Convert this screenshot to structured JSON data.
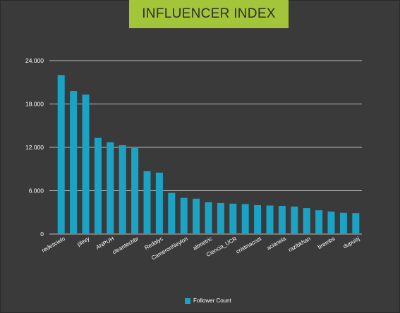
{
  "header": {
    "title": "INFLUENCER INDEX"
  },
  "legend": {
    "label": "Follower Count"
  },
  "colors": {
    "bar": "#1ba3c6",
    "banner": "#a3c539",
    "background": "#3a3a3a",
    "grid": "#e6e6e6"
  },
  "chart_data": {
    "type": "bar",
    "title": "INFLUENCER INDEX",
    "xlabel": "",
    "ylabel": "",
    "ylim": [
      0,
      24000
    ],
    "yticks": [
      0,
      6000,
      12000,
      18000,
      24000
    ],
    "ytick_labels": [
      "0",
      "6.000",
      "12.000",
      "18.000",
      "24.000"
    ],
    "grid": true,
    "legend_position": "bottom",
    "categories": [
      "redescielo",
      "",
      "plevy",
      "",
      "ANPUH",
      "",
      "cleantechbr",
      "",
      "Redalyc",
      "",
      "CameronNeylon",
      "",
      "altmetric",
      "",
      "Ciencia_UCR",
      "",
      "cristinacost",
      "",
      "acianela",
      "",
      "razibkhan",
      "",
      "brembs",
      "",
      "dupuisj"
    ],
    "series": [
      {
        "name": "Follower Count",
        "values": [
          22000,
          19800,
          19300,
          13300,
          12700,
          12300,
          11900,
          8700,
          8500,
          5700,
          5000,
          4900,
          4400,
          4300,
          4200,
          4150,
          4000,
          3950,
          3900,
          3800,
          3600,
          3300,
          3100,
          2950,
          2900
        ]
      }
    ]
  }
}
